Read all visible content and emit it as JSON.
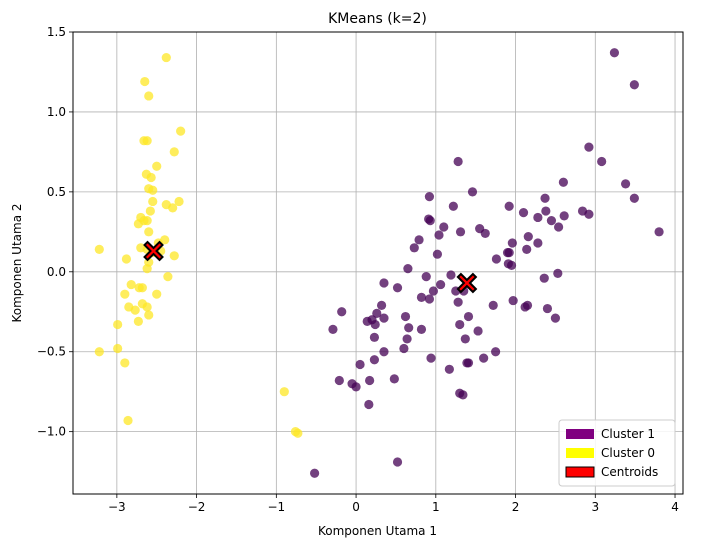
{
  "chart_data": {
    "type": "scatter",
    "title": "KMeans (k=2)",
    "xlabel": "Komponen Utama 1",
    "ylabel": "Komponen Utama 2",
    "xlim": [
      -3.55,
      4.1
    ],
    "ylim": [
      -1.39,
      1.5
    ],
    "xticks": [
      -3,
      -2,
      -1,
      0,
      1,
      2,
      3,
      4
    ],
    "xtick_labels": [
      "−3",
      "−2",
      "−1",
      "0",
      "1",
      "2",
      "3",
      "4"
    ],
    "yticks": [
      -1.0,
      -0.5,
      0.0,
      0.5,
      1.0,
      1.5
    ],
    "ytick_labels": [
      "−1.0",
      "−0.5",
      "0.0",
      "0.5",
      "1.0",
      "1.5"
    ],
    "grid": true,
    "legend_position": "bottom-right",
    "legend": [
      {
        "label": "Cluster 1",
        "color": "#800080"
      },
      {
        "label": "Cluster 0",
        "color": "#ffff00"
      },
      {
        "label": "Centroids",
        "color": "#ff0000"
      }
    ],
    "series": [
      {
        "name": "Cluster 0",
        "color": "#fde725",
        "points": [
          [
            -2.38,
            1.34
          ],
          [
            -2.65,
            1.19
          ],
          [
            -2.6,
            1.1
          ],
          [
            -2.2,
            0.88
          ],
          [
            -2.66,
            0.82
          ],
          [
            -2.62,
            0.82
          ],
          [
            -2.28,
            0.75
          ],
          [
            -2.63,
            0.61
          ],
          [
            -2.5,
            0.66
          ],
          [
            -2.57,
            0.59
          ],
          [
            -2.6,
            0.52
          ],
          [
            -2.55,
            0.51
          ],
          [
            -2.55,
            0.44
          ],
          [
            -2.38,
            0.42
          ],
          [
            -2.3,
            0.4
          ],
          [
            -2.22,
            0.44
          ],
          [
            -2.7,
            0.34
          ],
          [
            -2.66,
            0.32
          ],
          [
            -2.62,
            0.32
          ],
          [
            -2.58,
            0.38
          ],
          [
            -2.73,
            0.3
          ],
          [
            -2.6,
            0.25
          ],
          [
            -2.4,
            0.2
          ],
          [
            -2.48,
            0.18
          ],
          [
            -2.7,
            0.15
          ],
          [
            -2.62,
            0.14
          ],
          [
            -2.55,
            0.12
          ],
          [
            -2.45,
            0.13
          ],
          [
            -3.22,
            0.14
          ],
          [
            -2.28,
            0.1
          ],
          [
            -2.88,
            0.08
          ],
          [
            -2.6,
            0.06
          ],
          [
            -2.62,
            0.02
          ],
          [
            -2.36,
            -0.03
          ],
          [
            -2.82,
            -0.08
          ],
          [
            -2.72,
            -0.1
          ],
          [
            -2.68,
            -0.1
          ],
          [
            -2.9,
            -0.14
          ],
          [
            -2.68,
            -0.2
          ],
          [
            -2.62,
            -0.22
          ],
          [
            -2.5,
            -0.14
          ],
          [
            -2.85,
            -0.22
          ],
          [
            -2.77,
            -0.24
          ],
          [
            -2.6,
            -0.27
          ],
          [
            -2.73,
            -0.31
          ],
          [
            -2.99,
            -0.33
          ],
          [
            -3.22,
            -0.5
          ],
          [
            -2.99,
            -0.48
          ],
          [
            -2.9,
            -0.57
          ],
          [
            -2.86,
            -0.93
          ],
          [
            -0.9,
            -0.75
          ],
          [
            -0.76,
            -1.0
          ],
          [
            -0.73,
            -1.01
          ]
        ]
      },
      {
        "name": "Cluster 1",
        "color": "#440154",
        "points": [
          [
            3.24,
            1.37
          ],
          [
            3.49,
            1.17
          ],
          [
            2.92,
            0.78
          ],
          [
            3.08,
            0.69
          ],
          [
            1.28,
            0.69
          ],
          [
            2.6,
            0.56
          ],
          [
            3.38,
            0.55
          ],
          [
            1.46,
            0.5
          ],
          [
            0.92,
            0.47
          ],
          [
            2.37,
            0.46
          ],
          [
            3.49,
            0.46
          ],
          [
            1.92,
            0.41
          ],
          [
            1.22,
            0.41
          ],
          [
            2.1,
            0.37
          ],
          [
            2.38,
            0.38
          ],
          [
            2.92,
            0.36
          ],
          [
            2.84,
            0.38
          ],
          [
            2.61,
            0.35
          ],
          [
            2.45,
            0.32
          ],
          [
            0.91,
            0.33
          ],
          [
            0.93,
            0.32
          ],
          [
            2.28,
            0.34
          ],
          [
            2.54,
            0.28
          ],
          [
            1.1,
            0.28
          ],
          [
            1.55,
            0.27
          ],
          [
            1.62,
            0.24
          ],
          [
            1.31,
            0.25
          ],
          [
            1.04,
            0.23
          ],
          [
            2.16,
            0.22
          ],
          [
            2.28,
            0.18
          ],
          [
            1.96,
            0.18
          ],
          [
            0.79,
            0.2
          ],
          [
            0.73,
            0.15
          ],
          [
            2.14,
            0.14
          ],
          [
            1.9,
            0.12
          ],
          [
            1.92,
            0.12
          ],
          [
            1.02,
            0.11
          ],
          [
            1.76,
            0.08
          ],
          [
            1.91,
            0.05
          ],
          [
            1.95,
            0.04
          ],
          [
            0.65,
            0.02
          ],
          [
            2.53,
            -0.01
          ],
          [
            0.88,
            -0.03
          ],
          [
            2.36,
            -0.04
          ],
          [
            1.19,
            -0.02
          ],
          [
            0.35,
            -0.07
          ],
          [
            1.06,
            -0.08
          ],
          [
            0.52,
            -0.1
          ],
          [
            0.97,
            -0.12
          ],
          [
            1.25,
            -0.12
          ],
          [
            1.35,
            -0.12
          ],
          [
            0.82,
            -0.16
          ],
          [
            0.92,
            -0.17
          ],
          [
            1.72,
            -0.21
          ],
          [
            2.15,
            -0.21
          ],
          [
            2.12,
            -0.22
          ],
          [
            2.4,
            -0.23
          ],
          [
            1.97,
            -0.18
          ],
          [
            0.32,
            -0.21
          ],
          [
            1.28,
            -0.19
          ],
          [
            0.26,
            -0.26
          ],
          [
            1.41,
            -0.28
          ],
          [
            0.2,
            -0.3
          ],
          [
            0.62,
            -0.28
          ],
          [
            2.5,
            -0.29
          ],
          [
            0.35,
            -0.29
          ],
          [
            0.14,
            -0.31
          ],
          [
            0.24,
            -0.33
          ],
          [
            1.3,
            -0.33
          ],
          [
            0.82,
            -0.36
          ],
          [
            0.66,
            -0.35
          ],
          [
            -0.29,
            -0.36
          ],
          [
            1.53,
            -0.37
          ],
          [
            0.23,
            -0.41
          ],
          [
            0.64,
            -0.42
          ],
          [
            1.37,
            -0.42
          ],
          [
            0.6,
            -0.48
          ],
          [
            0.35,
            -0.5
          ],
          [
            1.75,
            -0.5
          ],
          [
            0.94,
            -0.54
          ],
          [
            1.6,
            -0.54
          ],
          [
            0.23,
            -0.55
          ],
          [
            1.39,
            -0.57
          ],
          [
            1.41,
            -0.57
          ],
          [
            0.05,
            -0.58
          ],
          [
            0.17,
            -0.68
          ],
          [
            -0.21,
            -0.68
          ],
          [
            0.48,
            -0.67
          ],
          [
            1.17,
            -0.61
          ],
          [
            -0.05,
            -0.7
          ],
          [
            0.0,
            -0.72
          ],
          [
            1.3,
            -0.76
          ],
          [
            1.34,
            -0.77
          ],
          [
            0.16,
            -0.83
          ],
          [
            -0.52,
            -1.26
          ],
          [
            0.52,
            -1.19
          ],
          [
            3.8,
            0.25
          ],
          [
            -0.18,
            -0.25
          ]
        ]
      }
    ],
    "centroids": [
      [
        -2.54,
        0.13
      ],
      [
        1.39,
        -0.07
      ]
    ]
  }
}
